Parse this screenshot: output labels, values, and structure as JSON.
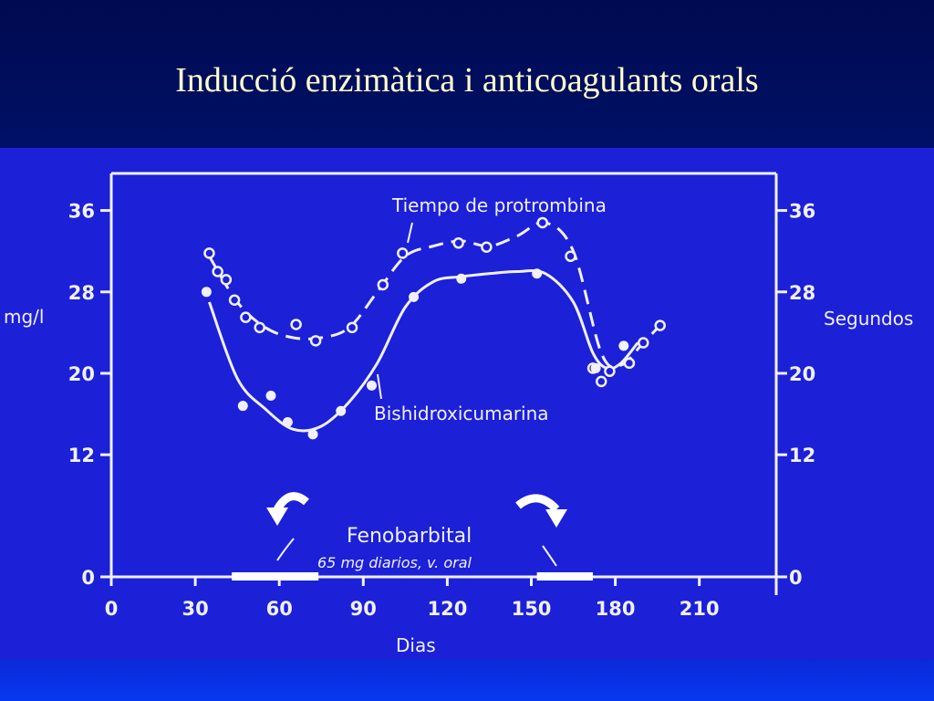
{
  "slide": {
    "title": "Inducció enzimàtica i anticoagulants orals"
  },
  "chart_data": {
    "type": "line",
    "xlabel": "Dias",
    "ylabel_left": "mg/l",
    "ylabel_right": "Segundos",
    "xlim": [
      0,
      230
    ],
    "ylim": [
      0,
      40
    ],
    "x_ticks": [
      0,
      30,
      60,
      90,
      120,
      150,
      180,
      210
    ],
    "y_ticks_left": [
      0,
      12,
      20,
      28,
      36
    ],
    "y_ticks_right": [
      0,
      12,
      20,
      28,
      36
    ],
    "grid": false,
    "series": [
      {
        "name": "Tiempo de protrombina",
        "style": "dashed",
        "curve": [
          [
            35,
            31.5
          ],
          [
            45,
            27
          ],
          [
            55,
            24.5
          ],
          [
            65,
            23.5
          ],
          [
            75,
            23.5
          ],
          [
            85,
            24.5
          ],
          [
            95,
            28
          ],
          [
            105,
            31.5
          ],
          [
            115,
            32.5
          ],
          [
            125,
            33
          ],
          [
            135,
            32.5
          ],
          [
            145,
            33.5
          ],
          [
            155,
            34.8
          ],
          [
            165,
            32
          ],
          [
            175,
            22
          ],
          [
            182,
            20.8
          ],
          [
            190,
            23
          ],
          [
            197,
            25
          ]
        ],
        "points": [
          [
            35,
            31.8
          ],
          [
            38,
            30
          ],
          [
            41,
            29.2
          ],
          [
            44,
            27.2
          ],
          [
            48,
            25.5
          ],
          [
            53,
            24.5
          ],
          [
            66,
            24.8
          ],
          [
            73,
            23.2
          ],
          [
            86,
            24.5
          ],
          [
            97,
            28.7
          ],
          [
            104,
            31.8
          ],
          [
            124,
            32.8
          ],
          [
            134,
            32.4
          ],
          [
            154,
            34.8
          ],
          [
            164,
            31.5
          ],
          [
            172,
            20.5
          ],
          [
            175,
            19.2
          ],
          [
            178,
            20.2
          ],
          [
            185,
            21
          ],
          [
            190,
            23
          ],
          [
            196,
            24.7
          ]
        ]
      },
      {
        "name": "Bishidroxicumarina",
        "style": "solid",
        "curve": [
          [
            35,
            27
          ],
          [
            45,
            19.5
          ],
          [
            55,
            16.5
          ],
          [
            65,
            14.5
          ],
          [
            75,
            14.8
          ],
          [
            85,
            17.2
          ],
          [
            95,
            21
          ],
          [
            105,
            26.5
          ],
          [
            115,
            29
          ],
          [
            125,
            29.5
          ],
          [
            135,
            29.8
          ],
          [
            145,
            30
          ],
          [
            155,
            29.8
          ],
          [
            165,
            27
          ],
          [
            172,
            22
          ],
          [
            177,
            20.5
          ],
          [
            182,
            21
          ],
          [
            188,
            23
          ]
        ],
        "points": [
          [
            34,
            28
          ],
          [
            47,
            16.8
          ],
          [
            57,
            17.8
          ],
          [
            63,
            15.2
          ],
          [
            72,
            14
          ],
          [
            82,
            16.3
          ],
          [
            93,
            18.8
          ],
          [
            108,
            27.5
          ],
          [
            125,
            29.3
          ],
          [
            152,
            29.8
          ],
          [
            173,
            20.5
          ],
          [
            183,
            22.7
          ]
        ]
      }
    ],
    "annotations": {
      "fenobarbital_name": "Fenobarbital",
      "fenobarbital_dose": "65 mg diarios, v. oral",
      "treatment_periods": [
        [
          43,
          74
        ],
        [
          152,
          172
        ]
      ]
    }
  }
}
